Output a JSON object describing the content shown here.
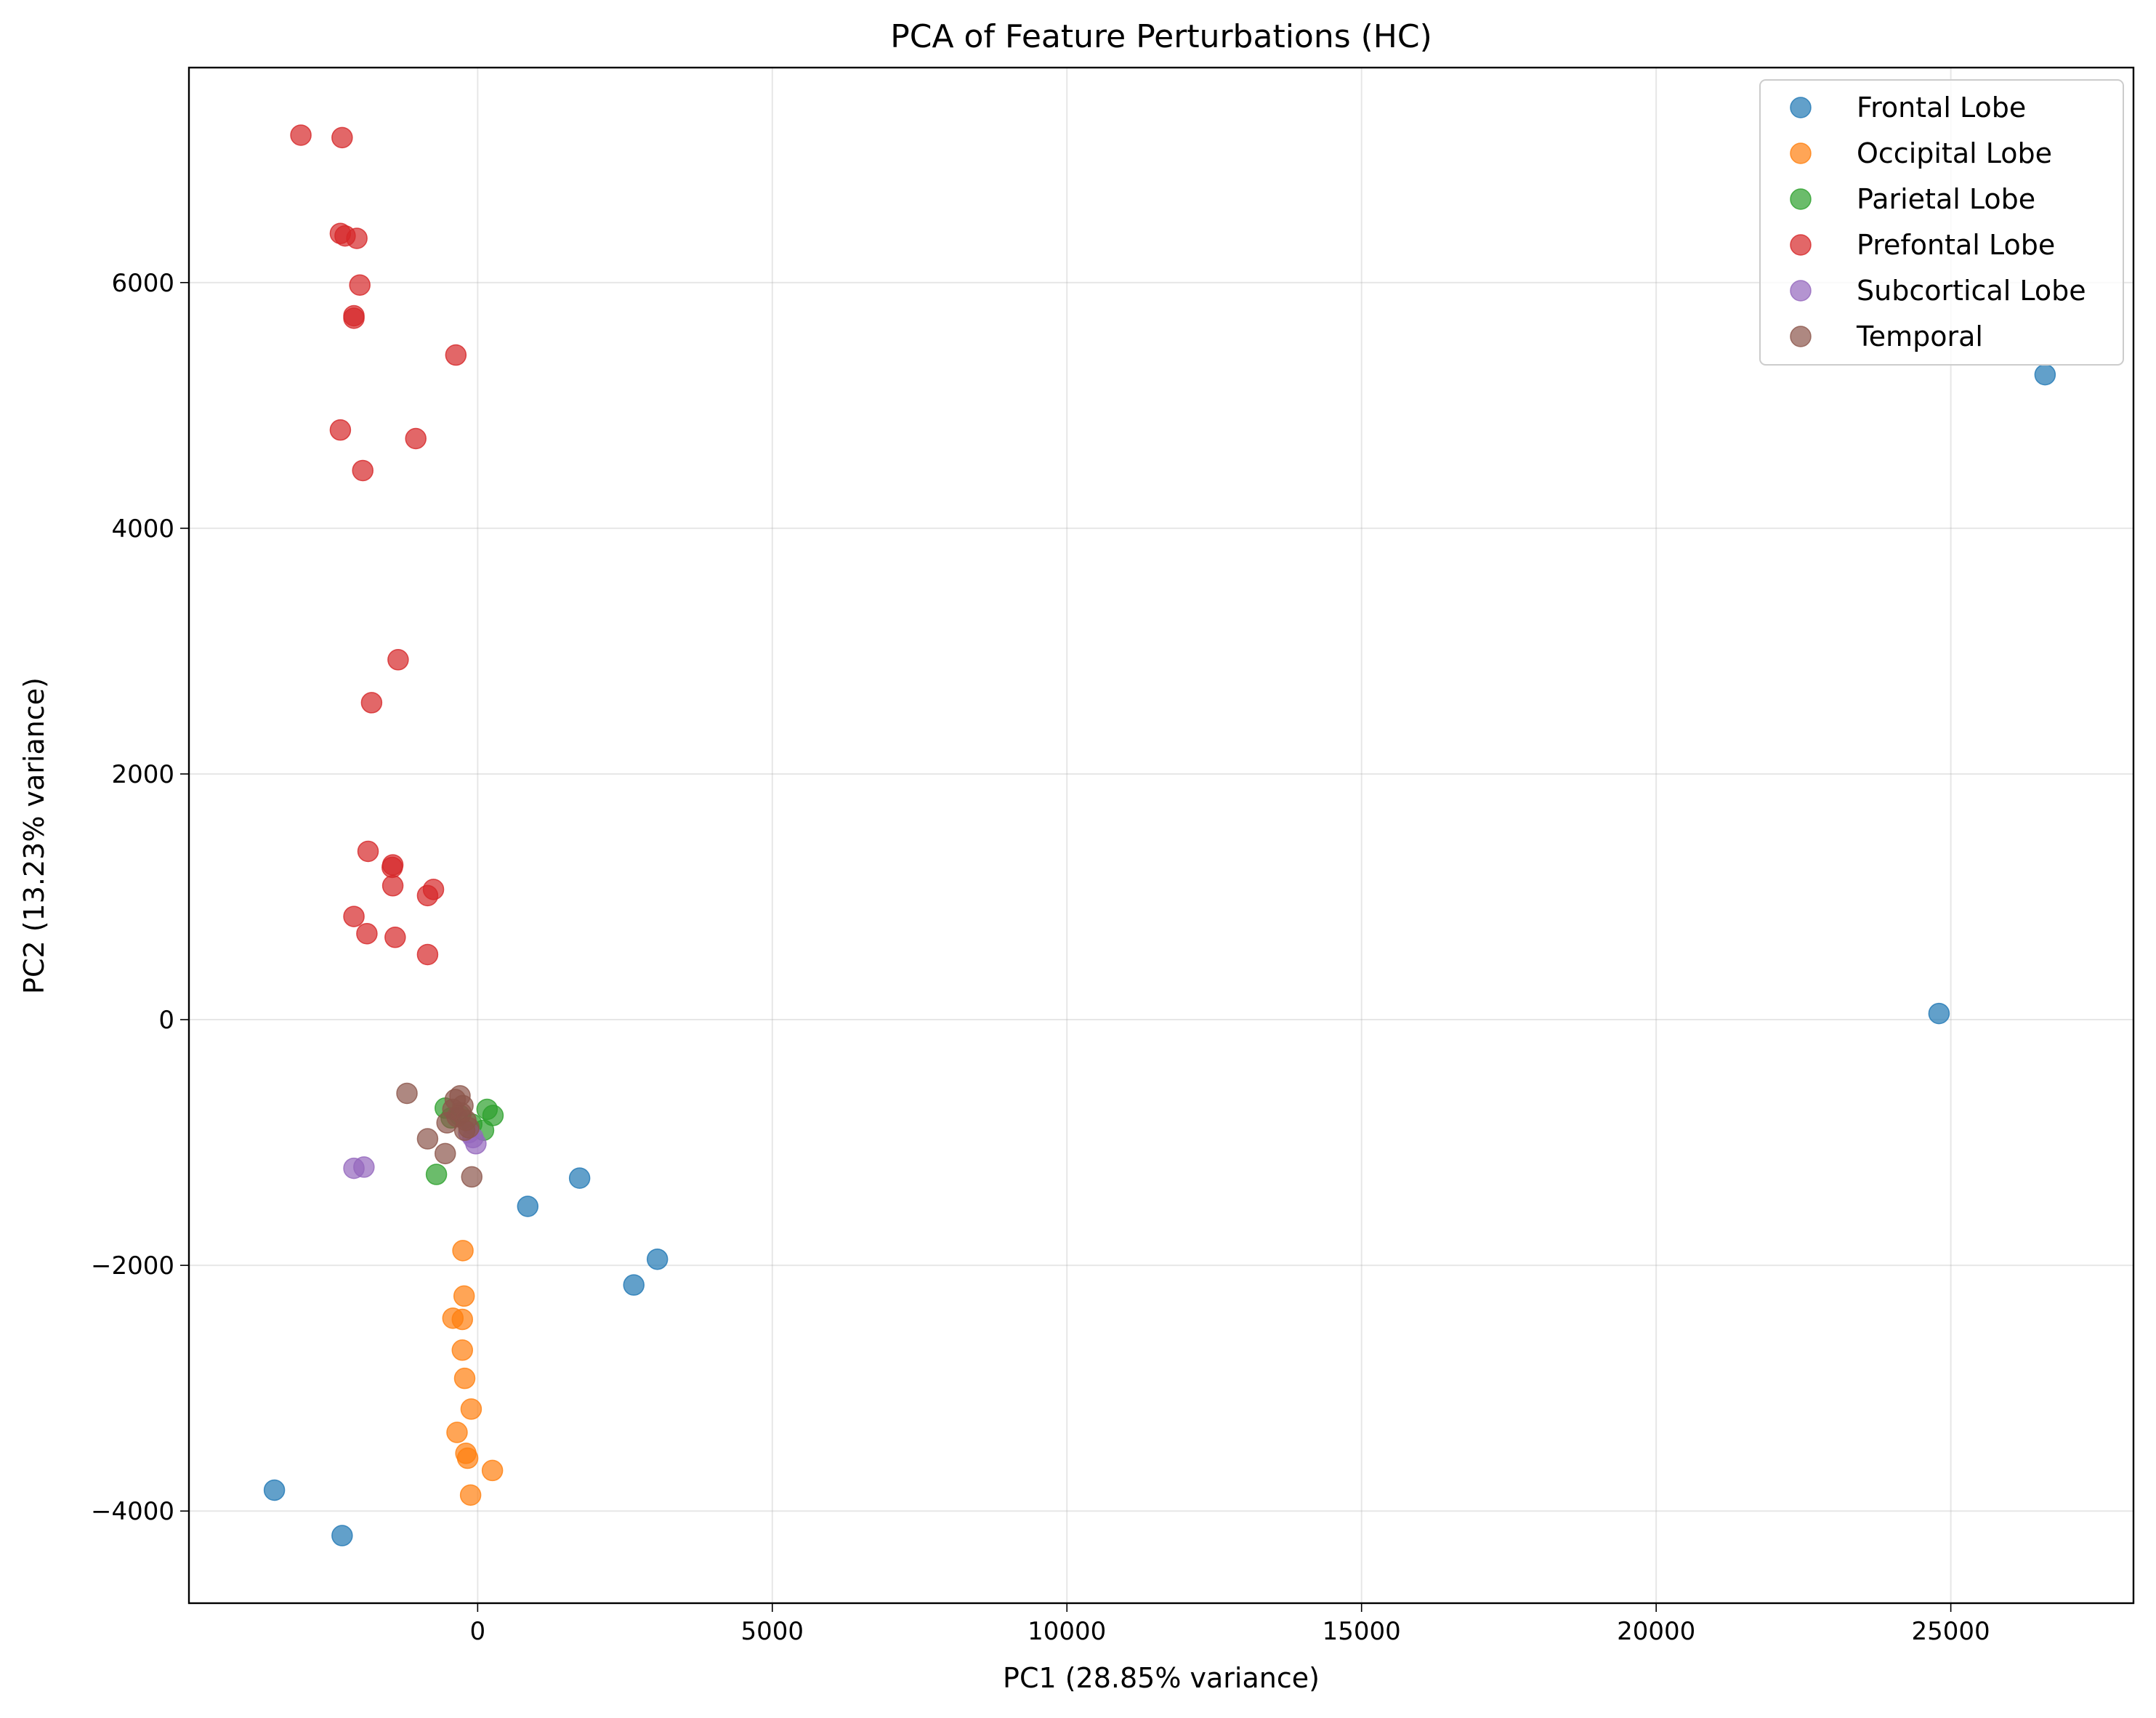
{
  "chart_data": {
    "type": "scatter",
    "title": "PCA of Feature Perturbations (HC)",
    "xlabel": "PC1 (28.85% variance)",
    "ylabel": "PC2 (13.23% variance)",
    "xlim": [
      -4900,
      28100
    ],
    "ylim": [
      -4750,
      7750
    ],
    "xticks": [
      0,
      5000,
      10000,
      15000,
      20000,
      25000
    ],
    "xtick_labels": [
      "0",
      "5000",
      "10000",
      "15000",
      "20000",
      "25000"
    ],
    "yticks": [
      -4000,
      -2000,
      0,
      2000,
      4000,
      6000
    ],
    "ytick_labels": [
      "−4000",
      "−2000",
      "0",
      "2000",
      "4000",
      "6000"
    ],
    "grid": true,
    "legend_position": "top-right",
    "series": [
      {
        "name": "Frontal Lobe",
        "color": "#1f77b4",
        "points": [
          [
            26600,
            5250
          ],
          [
            24800,
            50
          ],
          [
            -3450,
            -3830
          ],
          [
            -2300,
            -4200
          ],
          [
            850,
            -1520
          ],
          [
            1730,
            -1290
          ],
          [
            3050,
            -1950
          ],
          [
            2650,
            -2160
          ]
        ]
      },
      {
        "name": "Occipital Lobe",
        "color": "#ff7f0e",
        "points": [
          [
            -250,
            -1880
          ],
          [
            -230,
            -2250
          ],
          [
            -420,
            -2430
          ],
          [
            -260,
            -2440
          ],
          [
            -260,
            -2690
          ],
          [
            -220,
            -2920
          ],
          [
            -110,
            -3170
          ],
          [
            -350,
            -3360
          ],
          [
            -200,
            -3530
          ],
          [
            -170,
            -3570
          ],
          [
            250,
            -3670
          ],
          [
            -120,
            -3870
          ]
        ]
      },
      {
        "name": "Parietal Lobe",
        "color": "#2ca02c",
        "points": [
          [
            -550,
            -720
          ],
          [
            160,
            -730
          ],
          [
            260,
            -780
          ],
          [
            -100,
            -850
          ],
          [
            100,
            -900
          ],
          [
            -700,
            -1260
          ],
          [
            -300,
            -780
          ],
          [
            -450,
            -800
          ]
        ]
      },
      {
        "name": "Prefontal Lobe",
        "color": "#d62728",
        "points": [
          [
            -3000,
            7200
          ],
          [
            -2300,
            7180
          ],
          [
            -2330,
            6400
          ],
          [
            -2250,
            6380
          ],
          [
            -2050,
            6360
          ],
          [
            -2000,
            5980
          ],
          [
            -2100,
            5730
          ],
          [
            -2100,
            5710
          ],
          [
            -370,
            5410
          ],
          [
            -2330,
            4800
          ],
          [
            -1050,
            4730
          ],
          [
            -1950,
            4470
          ],
          [
            -1350,
            2930
          ],
          [
            -1800,
            2580
          ],
          [
            -1860,
            1370
          ],
          [
            -1440,
            1260
          ],
          [
            -1450,
            1240
          ],
          [
            -750,
            1060
          ],
          [
            -850,
            1010
          ],
          [
            -1440,
            1090
          ],
          [
            -2100,
            840
          ],
          [
            -1880,
            700
          ],
          [
            -1400,
            670
          ],
          [
            -850,
            530
          ]
        ]
      },
      {
        "name": "Subcortical Lobe",
        "color": "#9467bd",
        "points": [
          [
            -2100,
            -1210
          ],
          [
            -1930,
            -1200
          ],
          [
            -30,
            -1010
          ],
          [
            -80,
            -960
          ],
          [
            -150,
            -920
          ]
        ]
      },
      {
        "name": "Temporal",
        "color": "#8c564b",
        "points": [
          [
            -1200,
            -600
          ],
          [
            -300,
            -620
          ],
          [
            -380,
            -650
          ],
          [
            -250,
            -700
          ],
          [
            -420,
            -730
          ],
          [
            -280,
            -760
          ],
          [
            -350,
            -790
          ],
          [
            -200,
            -820
          ],
          [
            -520,
            -840
          ],
          [
            -150,
            -880
          ],
          [
            -850,
            -970
          ],
          [
            -550,
            -1090
          ],
          [
            -100,
            -1280
          ],
          [
            -220,
            -900
          ]
        ]
      }
    ]
  }
}
